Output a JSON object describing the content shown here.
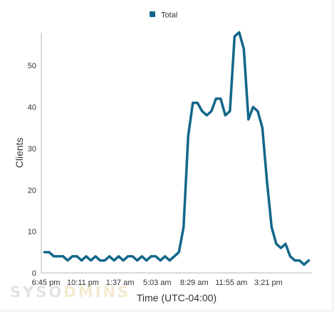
{
  "legend": {
    "label": "Total",
    "swatch_color": "#13678a"
  },
  "watermark": {
    "text_part1": "SYSO",
    "text_part2": "DMINS",
    "accent_color": "#f3ead0",
    "base_color": "#e3e3e3"
  },
  "chart_data": {
    "type": "line",
    "title": "",
    "xlabel": "Time (UTC-04:00)",
    "ylabel": "Clients",
    "ylim": [
      0,
      58.5
    ],
    "yticks": [
      0,
      10,
      20,
      30,
      40,
      50
    ],
    "grid": false,
    "legend_position": "top-center",
    "line_color": "#13678a",
    "xtick_labels": [
      {
        "index": 0,
        "label": "6:45 pm"
      },
      {
        "index": 8,
        "label": "10:11 pm"
      },
      {
        "index": 16,
        "label": "1:37 am"
      },
      {
        "index": 24,
        "label": "5:03 am"
      },
      {
        "index": 32,
        "label": "8:29 am"
      },
      {
        "index": 40,
        "label": "11:55 am"
      },
      {
        "index": 48,
        "label": "3:21 pm"
      }
    ],
    "series": [
      {
        "name": "Total",
        "values": [
          5,
          5,
          4,
          4,
          4,
          3,
          4,
          4,
          3,
          4,
          3,
          4,
          3,
          3,
          4,
          3,
          4,
          3,
          4,
          4,
          3,
          4,
          3,
          4,
          4,
          3,
          4,
          3,
          4,
          5,
          11,
          33,
          41,
          41,
          39,
          38,
          39,
          42,
          42,
          38,
          39,
          57,
          58,
          54,
          37,
          40,
          39,
          35,
          22,
          11,
          7,
          6,
          7,
          4,
          3,
          3,
          2,
          3
        ]
      }
    ]
  }
}
